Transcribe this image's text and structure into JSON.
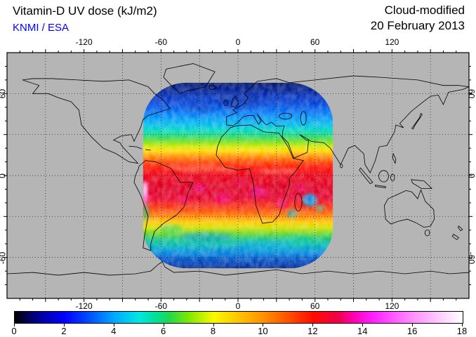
{
  "header": {
    "title": "Vitamin-D UV dose (kJ/m2)",
    "credit": "KNMI / ESA",
    "credit_color": "#0000ff",
    "product": "Cloud-modified",
    "date": "20 February 2013"
  },
  "map": {
    "background": "#b5b5b5",
    "coastline_color": "#000000",
    "grid_color": "#000000",
    "projection": "plate-carree",
    "lon_range": [
      -180,
      180
    ],
    "lat_range": [
      -90,
      90
    ],
    "grid_step_deg": 30,
    "tick_step_deg": 10,
    "lon_labels": [
      {
        "lon": -120,
        "label": "-120"
      },
      {
        "lon": -60,
        "label": "-60"
      },
      {
        "lon": 0,
        "label": "0"
      },
      {
        "lon": 60,
        "label": "60"
      },
      {
        "lon": 120,
        "label": "120"
      }
    ],
    "lat_labels": [
      {
        "lat": 60,
        "label": "60"
      },
      {
        "lat": 0,
        "label": "0"
      },
      {
        "lat": -60,
        "label": "-60"
      }
    ],
    "overlay": {
      "description": "cloud-modified vitamin-D UV dose field, geostationary disk centred on 0E 0N",
      "center_lon": 0,
      "center_lat": 0,
      "half_width_deg": 74,
      "half_height_deg": 68
    }
  },
  "colorbar": {
    "min": 0,
    "max": 18,
    "units": "kJ/m2",
    "tick_labels": [
      "0",
      "2",
      "4",
      "6",
      "8",
      "10",
      "12",
      "14",
      "16",
      "18"
    ],
    "stops": [
      {
        "v": 0,
        "color": "#000000"
      },
      {
        "v": 0.6,
        "color": "#000060"
      },
      {
        "v": 1.2,
        "color": "#0000b0"
      },
      {
        "v": 2,
        "color": "#0000ff"
      },
      {
        "v": 3,
        "color": "#0050ff"
      },
      {
        "v": 4,
        "color": "#00a8ff"
      },
      {
        "v": 5,
        "color": "#00e8e0"
      },
      {
        "v": 5.6,
        "color": "#00e0a0"
      },
      {
        "v": 6.2,
        "color": "#20d850"
      },
      {
        "v": 7,
        "color": "#80e800"
      },
      {
        "v": 8,
        "color": "#f8f800"
      },
      {
        "v": 9,
        "color": "#ffc400"
      },
      {
        "v": 10,
        "color": "#ff9000"
      },
      {
        "v": 11,
        "color": "#ff5000"
      },
      {
        "v": 12,
        "color": "#ff0c00"
      },
      {
        "v": 13,
        "color": "#f00048"
      },
      {
        "v": 13.6,
        "color": "#ff00b0"
      },
      {
        "v": 14.4,
        "color": "#ff20ff"
      },
      {
        "v": 16,
        "color": "#ff90ff"
      },
      {
        "v": 17,
        "color": "#ffc8ff"
      },
      {
        "v": 18,
        "color": "#ffffff"
      }
    ]
  }
}
